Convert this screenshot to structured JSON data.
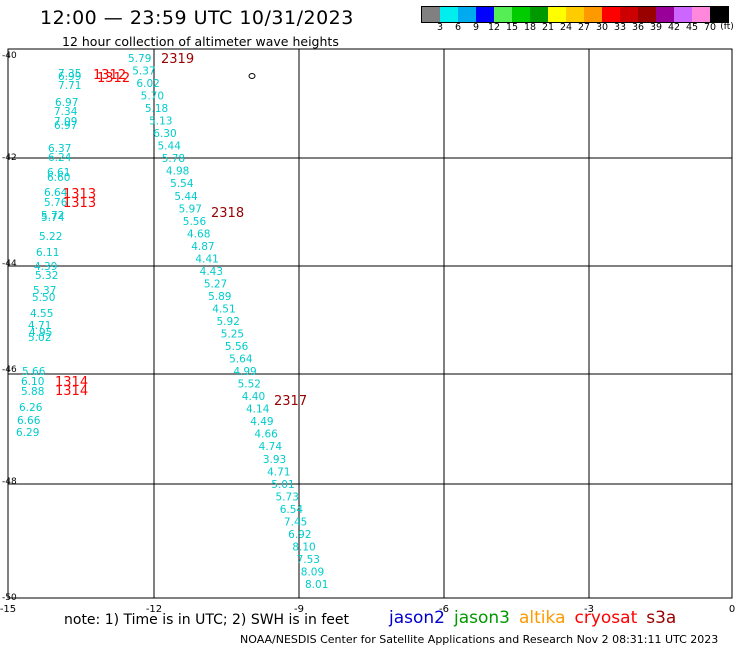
{
  "header": {
    "title": "12:00 — 23:59 UTC 10/31/2023",
    "subtitle": "12 hour collection of altimeter wave heights"
  },
  "color_legend": {
    "colors": [
      "#808080",
      "#00eeee",
      "#00aaee",
      "#0000ff",
      "#55ee55",
      "#00cc00",
      "#009900",
      "#ffff00",
      "#ffcc00",
      "#ff9900",
      "#ff0000",
      "#cc0000",
      "#990000",
      "#990099",
      "#cc66ff",
      "#ff88dd",
      "#000000"
    ],
    "labels": [
      "3",
      "6",
      "9",
      "12",
      "15",
      "18",
      "21",
      "24",
      "27",
      "30",
      "33",
      "36",
      "39",
      "42",
      "45",
      "70"
    ],
    "unit": "(ft)"
  },
  "axes": {
    "x_labels": [
      "-15",
      "-12",
      "-9",
      "-6",
      "-3",
      "0"
    ],
    "y_labels": [
      "-40",
      "-42",
      "-44",
      "-46",
      "-48",
      "-50"
    ]
  },
  "tracks": {
    "track_labels": [
      "2319",
      "2318",
      "2317",
      "1312",
      "1313",
      "1314"
    ],
    "pass_A": [
      "5.79",
      "5.37",
      "6.02",
      "5.70",
      "5.18",
      "5.13",
      "6.30",
      "5.44",
      "5.78",
      "4.98",
      "5.54",
      "5.44",
      "5.97",
      "5.56",
      "4.68",
      "4.87",
      "4.41",
      "4.43",
      "5.27",
      "5.89",
      "4.51",
      "5.92",
      "5.25",
      "5.56",
      "5.64",
      "4.99",
      "5.52",
      "4.40",
      "4.14",
      "4.49",
      "4.66",
      "4.74",
      "3.93",
      "4.71",
      "5.01",
      "5.73",
      "6.54",
      "7.45",
      "6.92",
      "8.10",
      "7.53",
      "8.09",
      "8.01"
    ],
    "pass_B": [
      "7.35",
      "6.99",
      "7.71",
      "6.97",
      "7.34",
      "7.09",
      "6.97",
      "6.37",
      "6.24",
      "6.61",
      "6.60",
      "6.64",
      "5.76",
      "5.72",
      "5.74",
      "5.22",
      "6.11",
      "4.39",
      "5.32",
      "5.37",
      "5.50",
      "4.55",
      "4.71",
      "4.95",
      "5.02",
      "5.66",
      "6.10",
      "5.88",
      "6.26",
      "6.66",
      "6.29"
    ]
  },
  "footer": {
    "note": "note:  1) Time is in UTC; 2) SWH is in feet",
    "satellites": [
      {
        "name": "jason2",
        "color": "#0000cc"
      },
      {
        "name": "jason3",
        "color": "#009900"
      },
      {
        "name": "altika",
        "color": "#ff9900"
      },
      {
        "name": "cryosat",
        "color": "#ff0000"
      },
      {
        "name": "s3a",
        "color": "#990000"
      }
    ],
    "credit": "NOAA/NESDIS Center for Satellite Applications and Research    Nov  2 08:31:11 UTC 2023"
  },
  "colors": {
    "measurement": "#00cccc",
    "track_jason": "#ff0000",
    "track_s3a": "#990000",
    "grid": "#000000"
  }
}
